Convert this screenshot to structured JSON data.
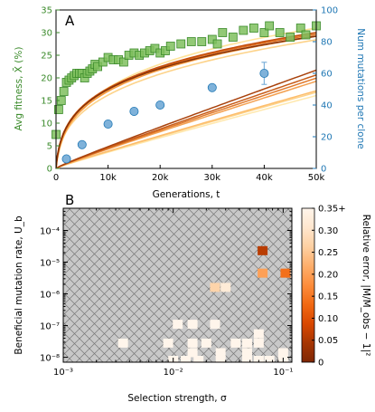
{
  "chart_data": [
    {
      "type": "scatter",
      "panel_label": "A",
      "xlabel": "Generations, t",
      "ylabel_left": "Avg fitness, X̄ (%)",
      "ylabel_right": "Num mutations per clone",
      "xlim": [
        0,
        50000
      ],
      "ylim_left": [
        0,
        35
      ],
      "ylim_right": [
        0,
        100
      ],
      "x_tick_labels": [
        "0",
        "10k",
        "20k",
        "30k",
        "40k",
        "50k"
      ],
      "y_left_tick_labels": [
        "0",
        "5",
        "10",
        "15",
        "20",
        "25",
        "30",
        "35"
      ],
      "y_right_tick_labels": [
        "0",
        "20",
        "40",
        "60",
        "80",
        "100"
      ],
      "colors": {
        "fitness": "#3a8a2a",
        "fitness_fill": "#7fbf5e",
        "mutations": "#1f77b4",
        "mutations_fill": "#7fb2da"
      },
      "fitness_points": [
        {
          "x": 0,
          "y": 7.5
        },
        {
          "x": 500,
          "y": 13
        },
        {
          "x": 1000,
          "y": 15
        },
        {
          "x": 1500,
          "y": 17
        },
        {
          "x": 2000,
          "y": 19
        },
        {
          "x": 2500,
          "y": 19.5
        },
        {
          "x": 3000,
          "y": 20
        },
        {
          "x": 3500,
          "y": 20.5
        },
        {
          "x": 4000,
          "y": 21
        },
        {
          "x": 4500,
          "y": 21
        },
        {
          "x": 5000,
          "y": 21
        },
        {
          "x": 5500,
          "y": 20
        },
        {
          "x": 6000,
          "y": 21
        },
        {
          "x": 6500,
          "y": 21.5
        },
        {
          "x": 7000,
          "y": 22
        },
        {
          "x": 7500,
          "y": 23
        },
        {
          "x": 8000,
          "y": 22.5
        },
        {
          "x": 9000,
          "y": 23.5
        },
        {
          "x": 10000,
          "y": 24.5
        },
        {
          "x": 11000,
          "y": 24
        },
        {
          "x": 12000,
          "y": 24
        },
        {
          "x": 13000,
          "y": 23.5
        },
        {
          "x": 14000,
          "y": 25
        },
        {
          "x": 15000,
          "y": 25.5
        },
        {
          "x": 16000,
          "y": 25
        },
        {
          "x": 17000,
          "y": 25.5
        },
        {
          "x": 18000,
          "y": 26
        },
        {
          "x": 19000,
          "y": 26.5
        },
        {
          "x": 20000,
          "y": 25.5
        },
        {
          "x": 21000,
          "y": 26
        },
        {
          "x": 22000,
          "y": 27
        },
        {
          "x": 24000,
          "y": 27.5
        },
        {
          "x": 26000,
          "y": 28
        },
        {
          "x": 28000,
          "y": 28
        },
        {
          "x": 30000,
          "y": 28.5
        },
        {
          "x": 31000,
          "y": 27.5
        },
        {
          "x": 32000,
          "y": 30
        },
        {
          "x": 34000,
          "y": 29
        },
        {
          "x": 36000,
          "y": 30.5
        },
        {
          "x": 38000,
          "y": 31
        },
        {
          "x": 40000,
          "y": 30
        },
        {
          "x": 41000,
          "y": 31.5
        },
        {
          "x": 43000,
          "y": 30
        },
        {
          "x": 45000,
          "y": 29
        },
        {
          "x": 47000,
          "y": 31
        },
        {
          "x": 48000,
          "y": 29.5
        },
        {
          "x": 50000,
          "y": 31.5
        }
      ],
      "mutation_points": [
        {
          "x": 2000,
          "y": 6
        },
        {
          "x": 5000,
          "y": 15
        },
        {
          "x": 10000,
          "y": 28
        },
        {
          "x": 15000,
          "y": 36
        },
        {
          "x": 20000,
          "y": 40
        },
        {
          "x": 30000,
          "y": 51
        },
        {
          "x": 40000,
          "y": 60,
          "err": 7
        }
      ],
      "fitness_model_curves": [
        {
          "color": "#ffe39a",
          "a": 29,
          "t0": 500,
          "p": 0.16
        },
        {
          "color": "#fdd38a",
          "a": 20,
          "t0": 150,
          "p": 0.25
        },
        {
          "color": "#fdc070",
          "a": 24,
          "t0": 300,
          "p": 0.2
        },
        {
          "color": "#f59a3e",
          "a": 25,
          "t0": 250,
          "p": 0.2
        },
        {
          "color": "#e07020",
          "a": 26,
          "t0": 200,
          "p": 0.19
        },
        {
          "color": "#c44e0e",
          "a": 25.5,
          "t0": 220,
          "p": 0.2
        },
        {
          "color": "#8a3206",
          "a": 26,
          "t0": 200,
          "p": 0.19
        }
      ],
      "mutation_model_lines": [
        {
          "color": "#ffe8ad",
          "end": 46
        },
        {
          "color": "#fdd38a",
          "end": 48
        },
        {
          "color": "#fdbd6c",
          "end": 49
        },
        {
          "color": "#f3a050",
          "end": 55
        },
        {
          "color": "#e07a2c",
          "end": 57
        },
        {
          "color": "#c75c18",
          "end": 59
        },
        {
          "color": "#a9420c",
          "end": 62
        }
      ]
    },
    {
      "type": "heatmap",
      "panel_label": "B",
      "xlabel": "Selection strength, σ",
      "ylabel": "Beneficial mutation rate, U_b",
      "xscale": "log",
      "yscale": "log",
      "xlim": [
        0.001,
        0.12
      ],
      "ylim": [
        7e-09,
        0.0005
      ],
      "x_tick_labels": [
        "10⁻³",
        "10⁻²",
        "10⁻¹"
      ],
      "y_tick_labels": [
        "10⁻⁸",
        "10⁻⁷",
        "10⁻⁶",
        "10⁻⁵",
        "10⁻⁴"
      ],
      "colorbar": {
        "label": "Relative error, |M/M_obs − 1|²",
        "tick_labels": [
          "0",
          "0.05",
          "0.10",
          "0.15",
          "0.20",
          "0.25",
          "0.30",
          "0.35+"
        ],
        "range": [
          0,
          0.35
        ],
        "stops": [
          "#7f2704",
          "#a63603",
          "#d94801",
          "#f16913",
          "#fd8d3c",
          "#fdae6b",
          "#fdd0a2",
          "#fee6ce",
          "#fff5eb"
        ]
      },
      "background": "hatched grey (excluded region)",
      "cells": [
        {
          "sigma": 0.065,
          "ub": 2.3e-05,
          "err": 0.06
        },
        {
          "sigma": 0.065,
          "ub": 4.5e-06,
          "err": 0.2
        },
        {
          "sigma": 0.105,
          "ub": 4.5e-06,
          "err": 0.14
        },
        {
          "sigma": 0.024,
          "ub": 1.6e-06,
          "err": 0.27
        },
        {
          "sigma": 0.03,
          "ub": 1.6e-06,
          "err": 0.32
        },
        {
          "sigma": 0.011,
          "ub": 1.1e-07,
          "err": 0.35
        },
        {
          "sigma": 0.015,
          "ub": 1.1e-07,
          "err": 0.35
        },
        {
          "sigma": 0.024,
          "ub": 1.1e-07,
          "err": 0.35
        },
        {
          "sigma": 0.06,
          "ub": 5.5e-08,
          "err": 0.35
        },
        {
          "sigma": 0.0035,
          "ub": 2.8e-08,
          "err": 0.35
        },
        {
          "sigma": 0.009,
          "ub": 2.8e-08,
          "err": 0.35
        },
        {
          "sigma": 0.015,
          "ub": 2.8e-08,
          "err": 0.35
        },
        {
          "sigma": 0.02,
          "ub": 2.8e-08,
          "err": 0.35
        },
        {
          "sigma": 0.037,
          "ub": 2.8e-08,
          "err": 0.35
        },
        {
          "sigma": 0.047,
          "ub": 2.8e-08,
          "err": 0.35
        },
        {
          "sigma": 0.06,
          "ub": 2.8e-08,
          "err": 0.35
        },
        {
          "sigma": 0.015,
          "ub": 1.4e-08,
          "err": 0.35
        },
        {
          "sigma": 0.027,
          "ub": 1.4e-08,
          "err": 0.35
        },
        {
          "sigma": 0.047,
          "ub": 1.4e-08,
          "err": 0.35
        },
        {
          "sigma": 0.1,
          "ub": 1.4e-08,
          "err": 0.35
        },
        {
          "sigma": 0.01,
          "ub": 8e-09,
          "err": 0.35
        },
        {
          "sigma": 0.013,
          "ub": 8e-09,
          "err": 0.35
        },
        {
          "sigma": 0.017,
          "ub": 8e-09,
          "err": 0.35
        },
        {
          "sigma": 0.027,
          "ub": 8e-09,
          "err": 0.35
        },
        {
          "sigma": 0.047,
          "ub": 8e-09,
          "err": 0.35
        },
        {
          "sigma": 0.06,
          "ub": 8e-09,
          "err": 0.35
        },
        {
          "sigma": 0.075,
          "ub": 8e-09,
          "err": 0.35
        },
        {
          "sigma": 0.1,
          "ub": 8e-09,
          "err": 0.35
        }
      ]
    }
  ]
}
